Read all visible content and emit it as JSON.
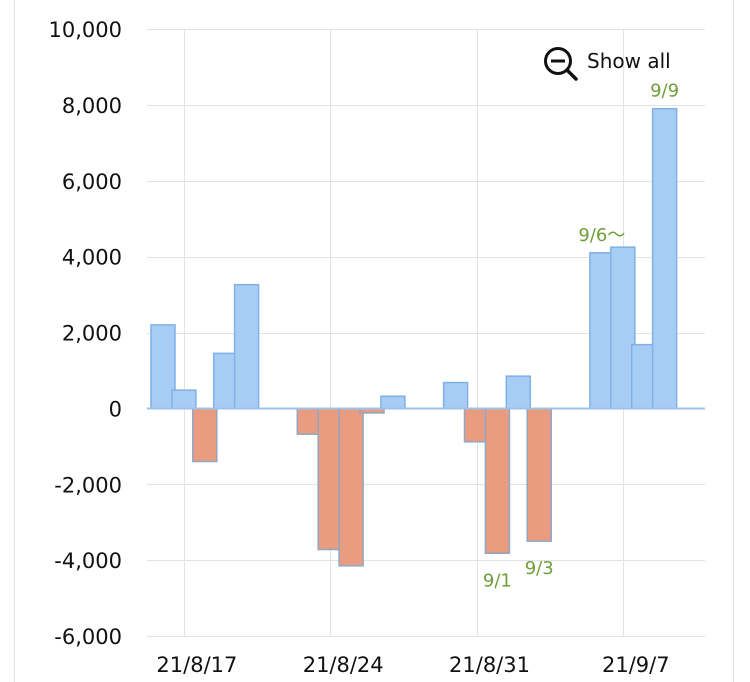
{
  "controls": {
    "show_all_label": "Show all",
    "zoom_icon": "zoom-out-icon"
  },
  "colors": {
    "positive": "#a8cdf5",
    "positive_stroke": "#7fb0e6",
    "negative": "#e99c80",
    "negative_stroke": "#8fa6c4",
    "annotation": "#6f9e3a",
    "grid": "#e2e2e2",
    "baseline": "#9fc3e8"
  },
  "chart_data": {
    "type": "bar",
    "title": "",
    "xlabel": "",
    "ylabel": "",
    "ylim": [
      -6000,
      10000
    ],
    "yticks": [
      10000,
      8000,
      6000,
      4000,
      2000,
      0,
      -2000,
      -4000,
      -6000
    ],
    "ytick_labels": [
      "10,000",
      "8,000",
      "6,000",
      "4,000",
      "2,000",
      "0",
      "-2,000",
      "-4,000",
      "-6,000"
    ],
    "x_tick_labels": [
      {
        "label": "21/8/17",
        "at": "2021-08-17"
      },
      {
        "label": "21/8/24",
        "at": "2021-08-24"
      },
      {
        "label": "21/8/31",
        "at": "2021-08-31"
      },
      {
        "label": "21/9/7",
        "at": "2021-09-07"
      }
    ],
    "categories": [
      "2021-08-16",
      "2021-08-17",
      "2021-08-18",
      "2021-08-19",
      "2021-08-20",
      "2021-08-23",
      "2021-08-24",
      "2021-08-25",
      "2021-08-26",
      "2021-08-27",
      "2021-08-30",
      "2021-08-31",
      "2021-09-01",
      "2021-09-02",
      "2021-09-03",
      "2021-09-06",
      "2021-09-07",
      "2021-09-08",
      "2021-09-09"
    ],
    "values": [
      2200,
      480,
      -1400,
      1450,
      3260,
      -680,
      -3720,
      -4150,
      -120,
      320,
      680,
      -880,
      -3820,
      850,
      -3500,
      4100,
      4250,
      1680,
      7900
    ],
    "annotations": [
      {
        "label": "9/1",
        "at": "2021-09-01",
        "position": "below"
      },
      {
        "label": "9/3",
        "at": "2021-09-03",
        "position": "below"
      },
      {
        "label": "9/6〜",
        "at": "2021-09-06",
        "position": "above"
      },
      {
        "label": "9/9",
        "at": "2021-09-09",
        "position": "above"
      }
    ],
    "grid": true,
    "legend": "none"
  }
}
